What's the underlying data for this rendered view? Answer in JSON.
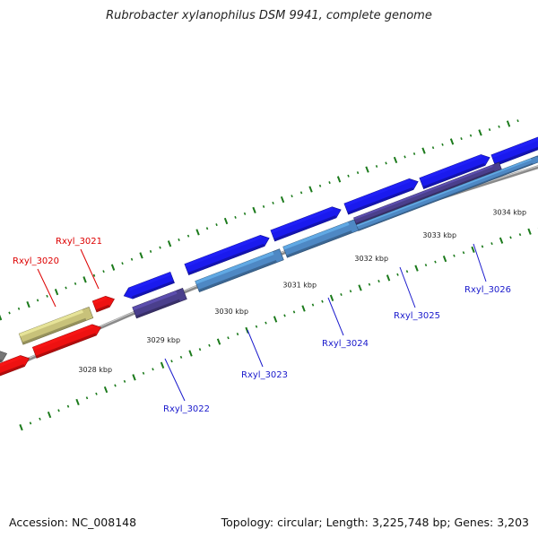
{
  "title": "Rubrobacter xylanophilus DSM 9941, complete genome",
  "footer": {
    "accession": "Accession: NC_008148",
    "topology": "Topology: circular; Length: 3,225,748 bp; Genes: 3,203"
  },
  "colors": {
    "gene_blue": "#1a1aee",
    "gene_red": "#ee1111",
    "gene_khaki": "#c8c27a",
    "gene_gray": "#777777",
    "gene_purple": "#4a3f8c",
    "gene_steel": "#4e88c4",
    "backbone": "#8a8a8a",
    "tick_green": "#1b7a1b",
    "label_red": "#dd0000",
    "label_blue": "#1a1acc"
  },
  "scale_labels": [
    "3028 kbp",
    "3029 kbp",
    "3030 kbp",
    "3031 kbp",
    "3032 kbp",
    "3033 kbp",
    "3034 kbp"
  ],
  "gene_labels": [
    {
      "name": "Rxyl_3020",
      "color": "red"
    },
    {
      "name": "Rxyl_3021",
      "color": "red"
    },
    {
      "name": "Rxyl_3022",
      "color": "blue"
    },
    {
      "name": "Rxyl_3023",
      "color": "blue"
    },
    {
      "name": "Rxyl_3024",
      "color": "blue"
    },
    {
      "name": "Rxyl_3025",
      "color": "blue"
    },
    {
      "name": "Rxyl_3026",
      "color": "blue"
    }
  ]
}
